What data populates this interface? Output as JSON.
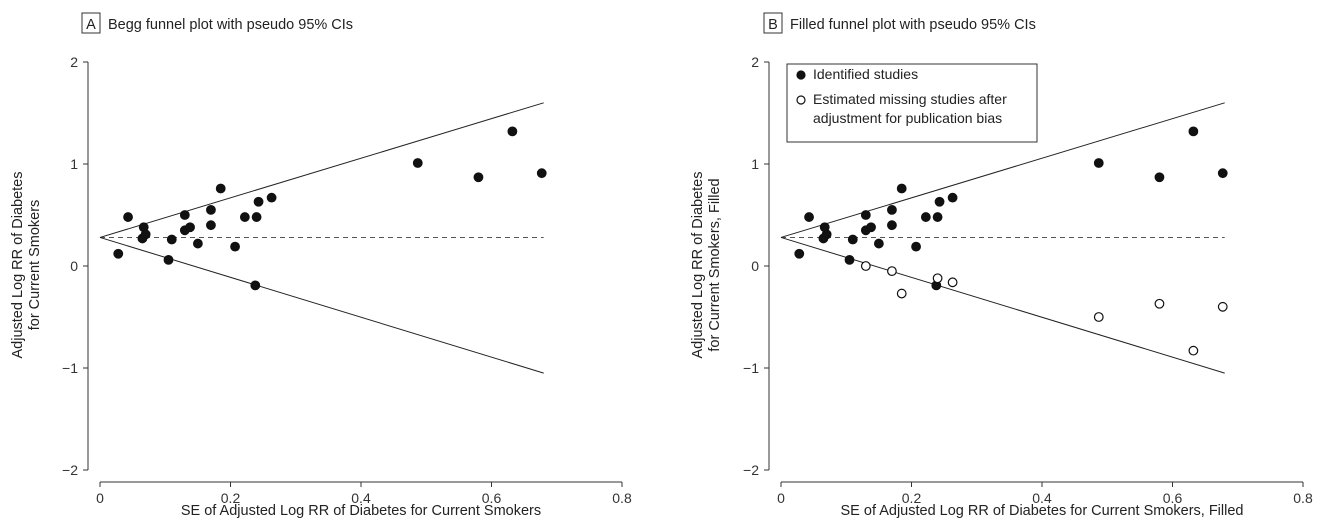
{
  "chart_data": [
    {
      "type": "scatter",
      "panel_letter": "A",
      "title": "Begg funnel plot with pseudo 95% CIs",
      "xlabel": "SE of Adjusted Log RR of Diabetes for Current Smokers",
      "ylabel_lines": [
        "Adjusted Log RR of Diabetes",
        "for Current Smokers"
      ],
      "xlim": [
        0,
        0.8
      ],
      "ylim": [
        -2,
        2
      ],
      "xticks": [
        "0",
        "0.2",
        "0.4",
        "0.6",
        "0.8"
      ],
      "yticks": [
        "−2",
        "−1",
        "0",
        "1",
        "2"
      ],
      "pooled_estimate": 0.28,
      "funnel_lines": {
        "upper_end": [
          0.68,
          1.6
        ],
        "lower_end": [
          0.68,
          -1.05
        ]
      },
      "series": [
        {
          "name": "",
          "marker": "filled",
          "points": [
            [
              0.028,
              0.12
            ],
            [
              0.043,
              0.48
            ],
            [
              0.065,
              0.27
            ],
            [
              0.067,
              0.38
            ],
            [
              0.07,
              0.31
            ],
            [
              0.105,
              0.06
            ],
            [
              0.11,
              0.26
            ],
            [
              0.13,
              0.5
            ],
            [
              0.13,
              0.35
            ],
            [
              0.138,
              0.38
            ],
            [
              0.15,
              0.22
            ],
            [
              0.17,
              0.55
            ],
            [
              0.17,
              0.4
            ],
            [
              0.185,
              0.76
            ],
            [
              0.207,
              0.19
            ],
            [
              0.222,
              0.48
            ],
            [
              0.238,
              -0.19
            ],
            [
              0.24,
              0.48
            ],
            [
              0.243,
              0.63
            ],
            [
              0.263,
              0.67
            ],
            [
              0.487,
              1.01
            ],
            [
              0.58,
              0.87
            ],
            [
              0.632,
              1.32
            ],
            [
              0.677,
              0.91
            ]
          ]
        }
      ]
    },
    {
      "type": "scatter",
      "panel_letter": "B",
      "title": "Filled funnel plot with pseudo 95% CIs",
      "xlabel": "SE of Adjusted Log RR of Diabetes for Current Smokers, Filled",
      "ylabel_lines": [
        "Adjusted Log RR of Diabetes",
        "for Current Smokers, Filled"
      ],
      "xlim": [
        0,
        0.8
      ],
      "ylim": [
        -2,
        2
      ],
      "xticks": [
        "0",
        "0.2",
        "0.4",
        "0.6",
        "0.8"
      ],
      "yticks": [
        "−2",
        "−1",
        "0",
        "1",
        "2"
      ],
      "pooled_estimate": 0.28,
      "funnel_lines": {
        "upper_end": [
          0.68,
          1.6
        ],
        "lower_end": [
          0.68,
          -1.05
        ]
      },
      "legend": {
        "placement": "top-left",
        "entries": [
          {
            "marker": "filled",
            "lines": [
              "Identified studies"
            ]
          },
          {
            "marker": "open",
            "lines": [
              "Estimated missing studies after",
              "adjustment for publication bias"
            ]
          }
        ]
      },
      "series": [
        {
          "name": "Identified studies",
          "marker": "filled",
          "points": [
            [
              0.028,
              0.12
            ],
            [
              0.043,
              0.48
            ],
            [
              0.065,
              0.27
            ],
            [
              0.067,
              0.38
            ],
            [
              0.07,
              0.31
            ],
            [
              0.105,
              0.06
            ],
            [
              0.11,
              0.26
            ],
            [
              0.13,
              0.5
            ],
            [
              0.13,
              0.35
            ],
            [
              0.138,
              0.38
            ],
            [
              0.15,
              0.22
            ],
            [
              0.17,
              0.55
            ],
            [
              0.17,
              0.4
            ],
            [
              0.185,
              0.76
            ],
            [
              0.207,
              0.19
            ],
            [
              0.222,
              0.48
            ],
            [
              0.238,
              -0.19
            ],
            [
              0.24,
              0.48
            ],
            [
              0.243,
              0.63
            ],
            [
              0.263,
              0.67
            ],
            [
              0.487,
              1.01
            ],
            [
              0.58,
              0.87
            ],
            [
              0.632,
              1.32
            ],
            [
              0.677,
              0.91
            ]
          ]
        },
        {
          "name": "Estimated missing studies after adjustment for publication bias",
          "marker": "open",
          "points": [
            [
              0.13,
              0.0
            ],
            [
              0.17,
              -0.05
            ],
            [
              0.185,
              -0.27
            ],
            [
              0.24,
              -0.12
            ],
            [
              0.263,
              -0.16
            ],
            [
              0.487,
              -0.5
            ],
            [
              0.58,
              -0.37
            ],
            [
              0.632,
              -0.83
            ],
            [
              0.677,
              -0.4
            ]
          ]
        }
      ]
    }
  ]
}
